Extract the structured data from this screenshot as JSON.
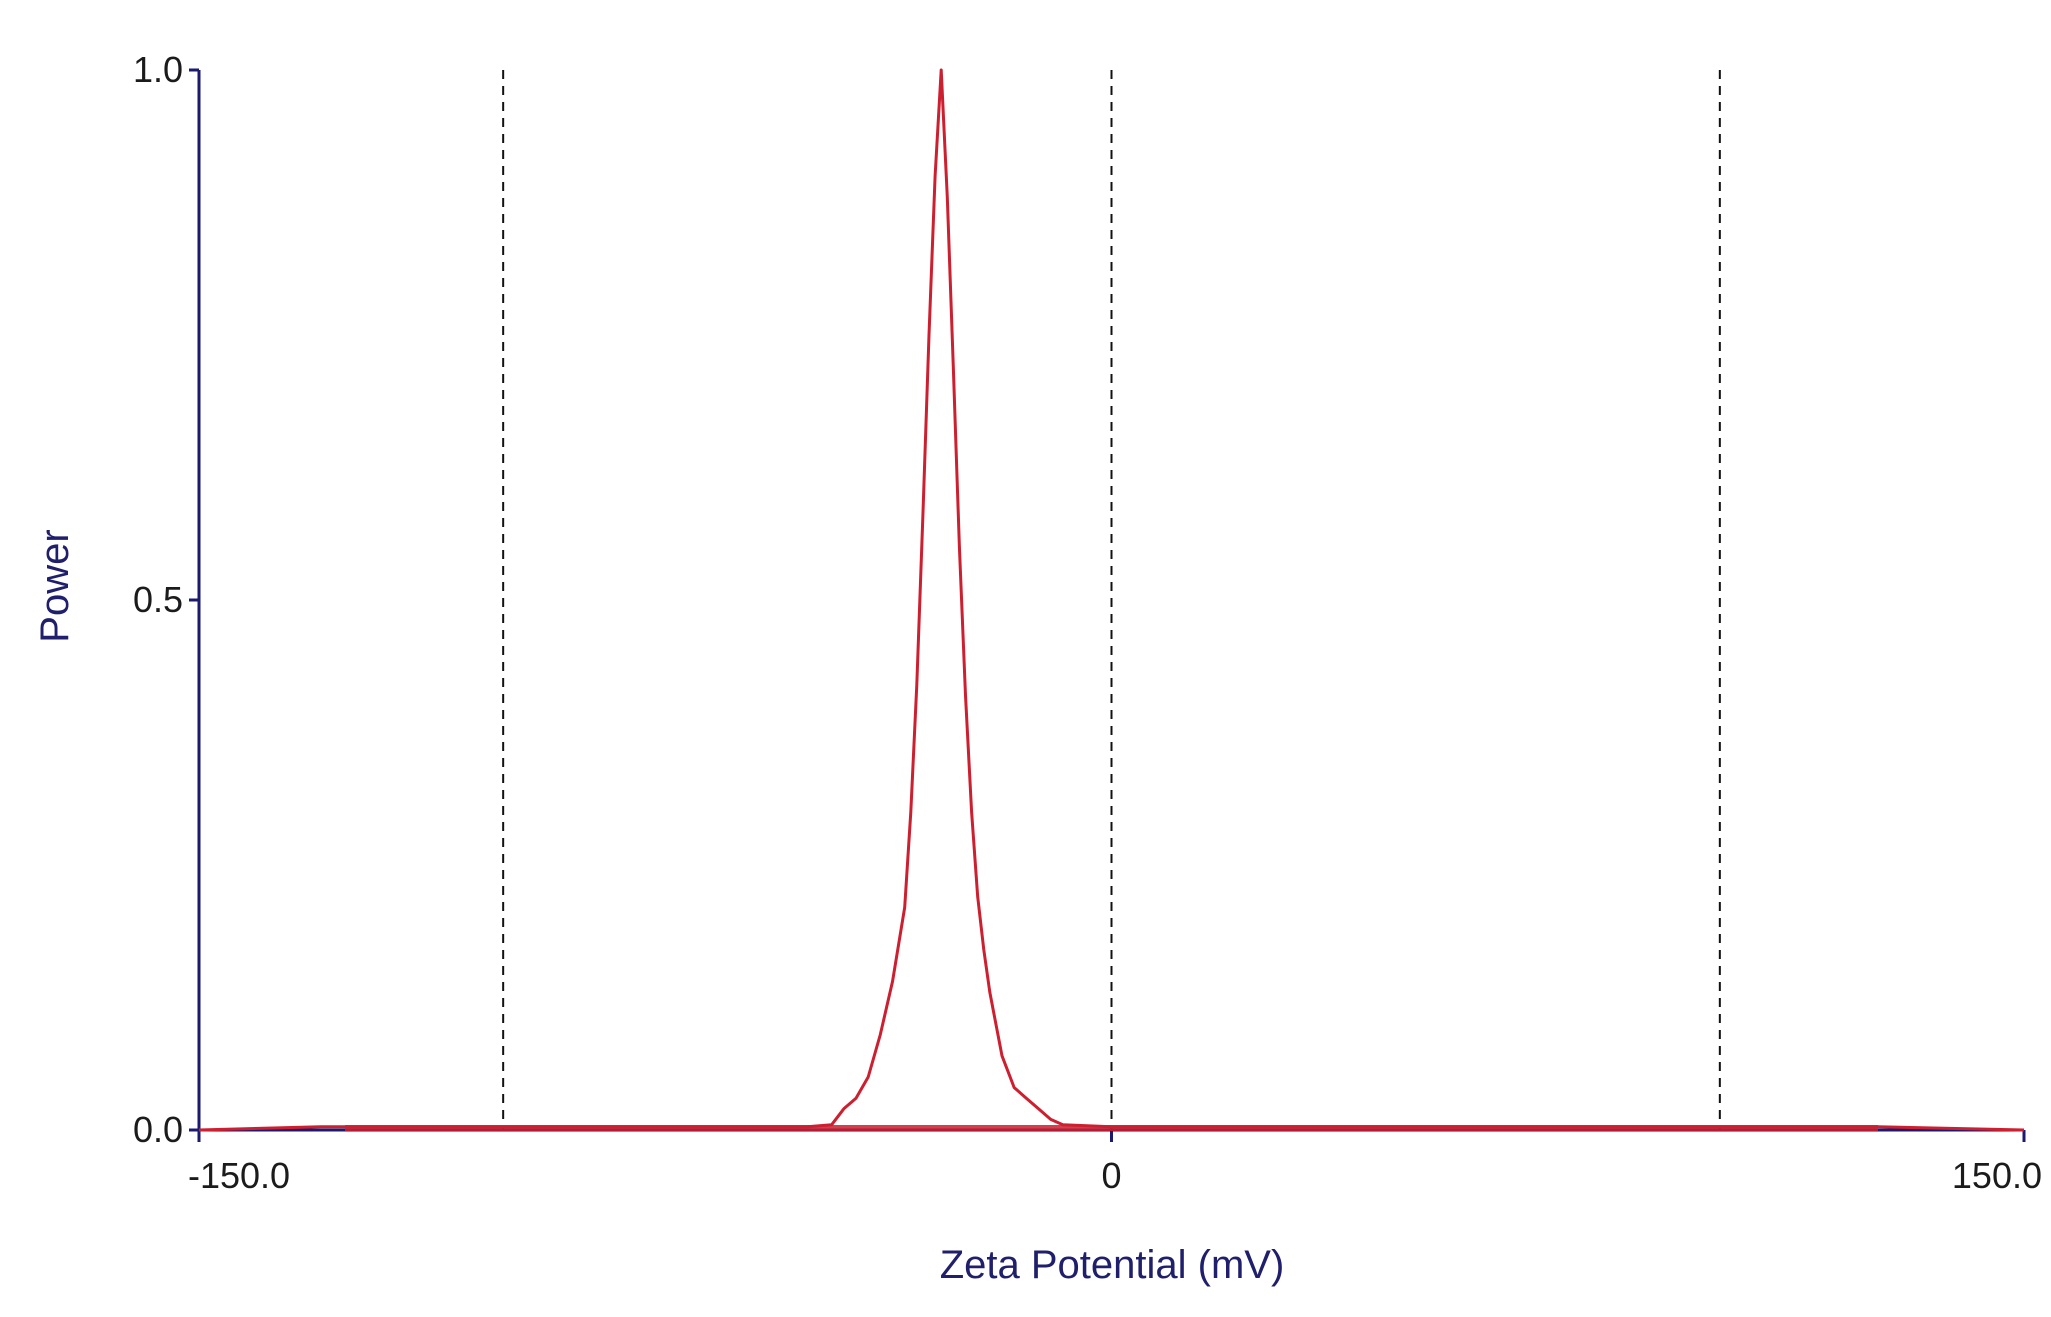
{
  "chart_data": {
    "type": "line",
    "xlabel": "Zeta Potential (mV)",
    "ylabel": "Power",
    "xlim": [
      -150,
      150
    ],
    "ylim": [
      0,
      1
    ],
    "x_tick_labels": [
      "-150.0",
      "0",
      "150.0"
    ],
    "x_tick_values": [
      -150,
      0,
      150
    ],
    "y_tick_labels": [
      "0.0",
      "0.5",
      "1.0"
    ],
    "y_tick_values": [
      0,
      0.5,
      1
    ],
    "dashed_gridlines_x": [
      -100,
      0,
      100
    ],
    "series": [
      {
        "color": "#cc1f2f",
        "x": [
          -150,
          -130,
          -50,
          -46,
          -44,
          -42,
          -40,
          -38,
          -36,
          -34,
          -33,
          -32,
          -31,
          -30,
          -29,
          -28,
          -27,
          -26,
          -25,
          -24,
          -23,
          -22,
          -21,
          -20,
          -19,
          -18,
          -16,
          -14,
          -12,
          -10,
          -8,
          0,
          100,
          126,
          150
        ],
        "y": [
          0,
          0.003,
          0.003,
          0.005,
          0.02,
          0.03,
          0.05,
          0.09,
          0.14,
          0.21,
          0.3,
          0.42,
          0.58,
          0.75,
          0.9,
          1.0,
          0.88,
          0.72,
          0.55,
          0.41,
          0.3,
          0.22,
          0.17,
          0.13,
          0.1,
          0.07,
          0.04,
          0.03,
          0.02,
          0.01,
          0.005,
          0.003,
          0.003,
          0.003,
          0
        ]
      }
    ],
    "baseline_color": "#1a1a6e",
    "grid": true,
    "legend": false
  }
}
